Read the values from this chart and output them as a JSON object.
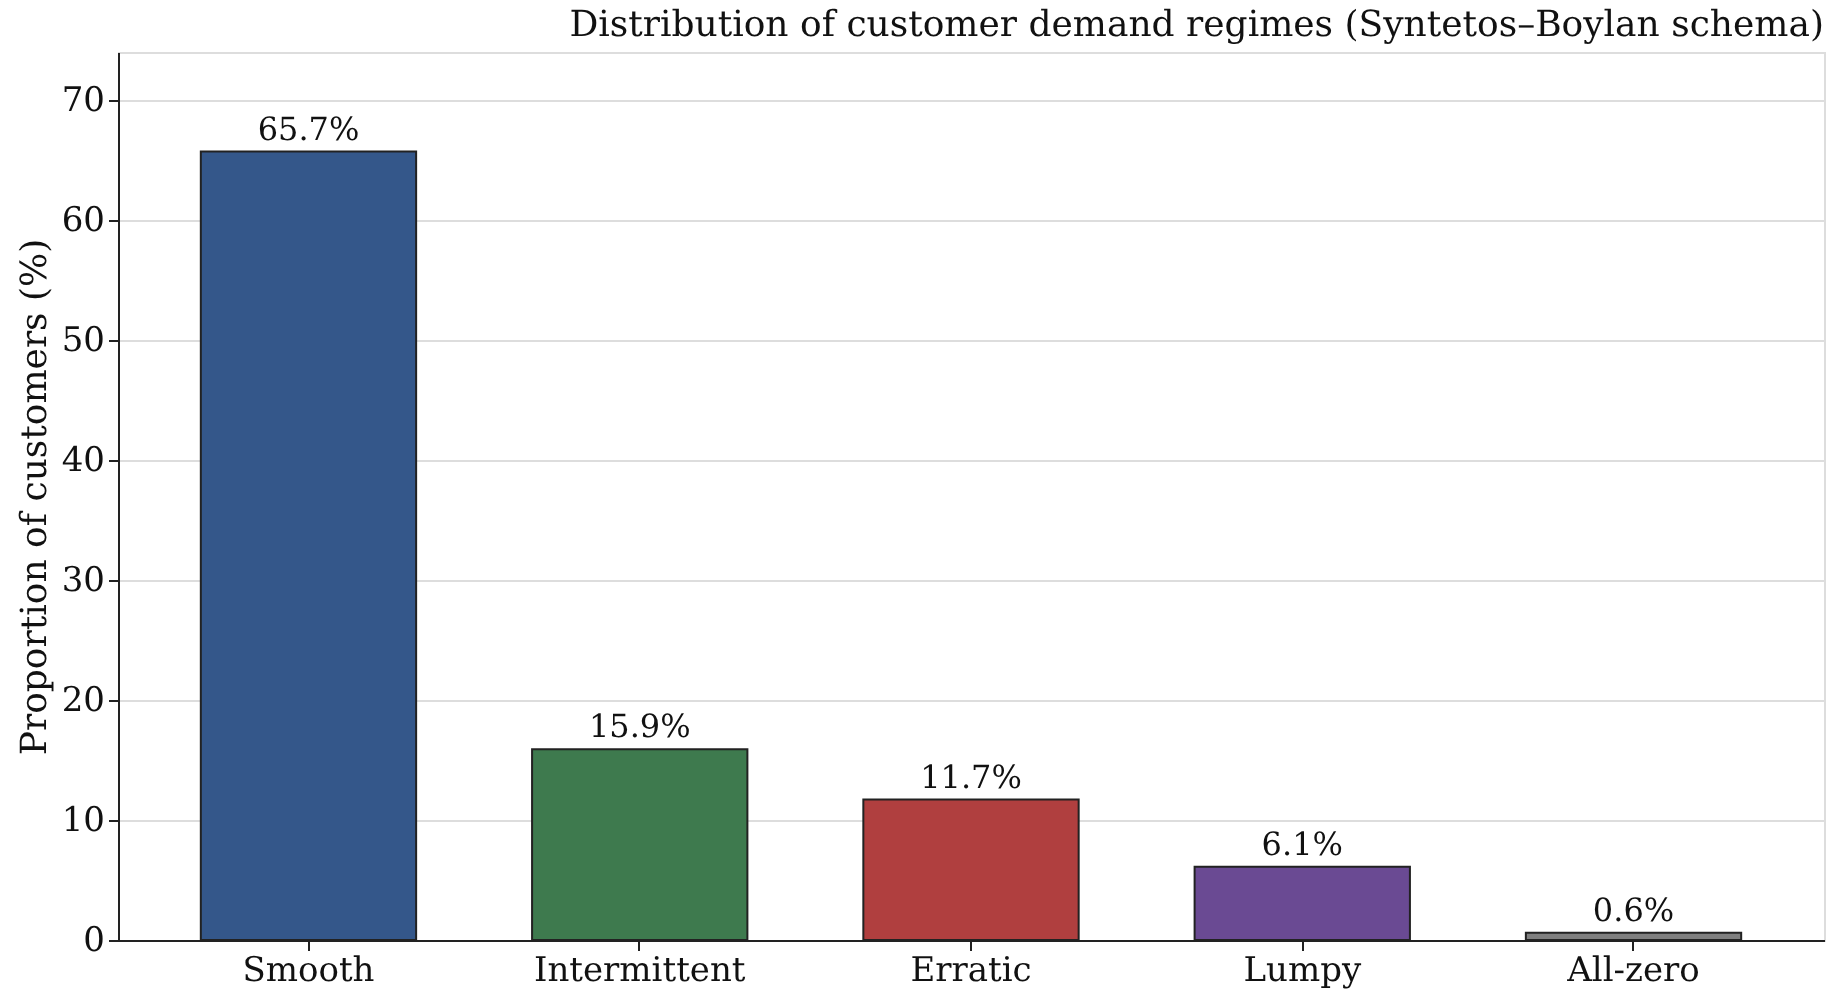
{
  "chart_data": {
    "type": "bar",
    "title": "Distribution of customer demand regimes (Syntetos–Boylan schema)",
    "ylabel": "Proportion of customers (%)",
    "categories": [
      "Smooth",
      "Intermittent",
      "Erratic",
      "Lumpy",
      "All-zero"
    ],
    "values": [
      65.7,
      15.9,
      11.7,
      6.1,
      0.6
    ],
    "colors": [
      "#34578a",
      "#3e7a4e",
      "#b03f3f",
      "#6a4a93",
      "#7f7f7f"
    ],
    "value_labels": [
      "65.7%",
      "15.9%",
      "11.7%",
      "6.1%",
      "0.6%"
    ],
    "ylim": [
      0,
      74
    ],
    "yticks": [
      0,
      10,
      20,
      30,
      40,
      50,
      60,
      70
    ],
    "grid": "y"
  }
}
